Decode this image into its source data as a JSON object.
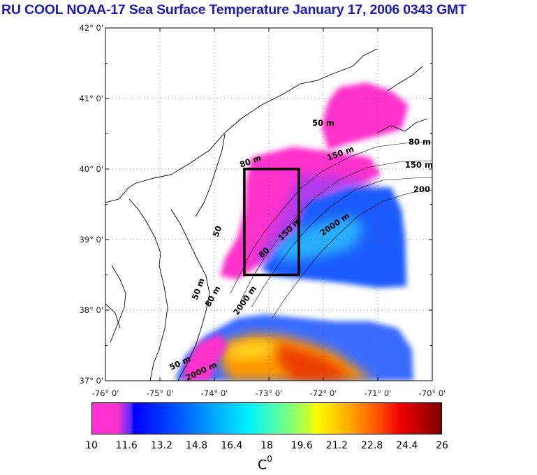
{
  "title": "RU COOL  NOAA-17 Sea Surface Temperature January 17, 2006 0343 GMT",
  "axes": {
    "lat_labels": [
      "42° 0'",
      "41° 0'",
      "40° 0'",
      "39° 0'",
      "38° 0'",
      "37° 0'"
    ],
    "lon_labels": [
      "-76° 0'",
      "-75° 0'",
      "-74° 0'",
      "-73° 0'",
      "-72° 0'",
      "-71° 0'",
      "-70° 0'"
    ],
    "lat_range": [
      37,
      42
    ],
    "lon_range": [
      -76,
      -70
    ]
  },
  "contours": {
    "labels": [
      "50 m",
      "80 m",
      "150 m",
      "2000 m",
      "200",
      "50",
      "80",
      "150 m",
      "2000 m",
      "50 m",
      "80 m",
      "150 m",
      "2000 m",
      "50 m",
      "80 m"
    ]
  },
  "study_box": {
    "lon_min": -73.45,
    "lon_max": -72.45,
    "lat_min": 38.5,
    "lat_max": 40.0
  },
  "colorbar": {
    "ticks": [
      "10",
      "11.6",
      "13.2",
      "14.8",
      "16.4",
      "18",
      "19.6",
      "21.2",
      "22.8",
      "24.4",
      "26"
    ],
    "min": 10,
    "max": 26,
    "unit_label": "C",
    "unit_sup": "0"
  },
  "colors": {
    "title": "#1a1ab4",
    "land": "#ffffff",
    "cold": "#ff33cc",
    "cool": "#1f4cff",
    "mid": "#2ab8ff",
    "warm": "#ff9900",
    "hot": "#d90000"
  }
}
